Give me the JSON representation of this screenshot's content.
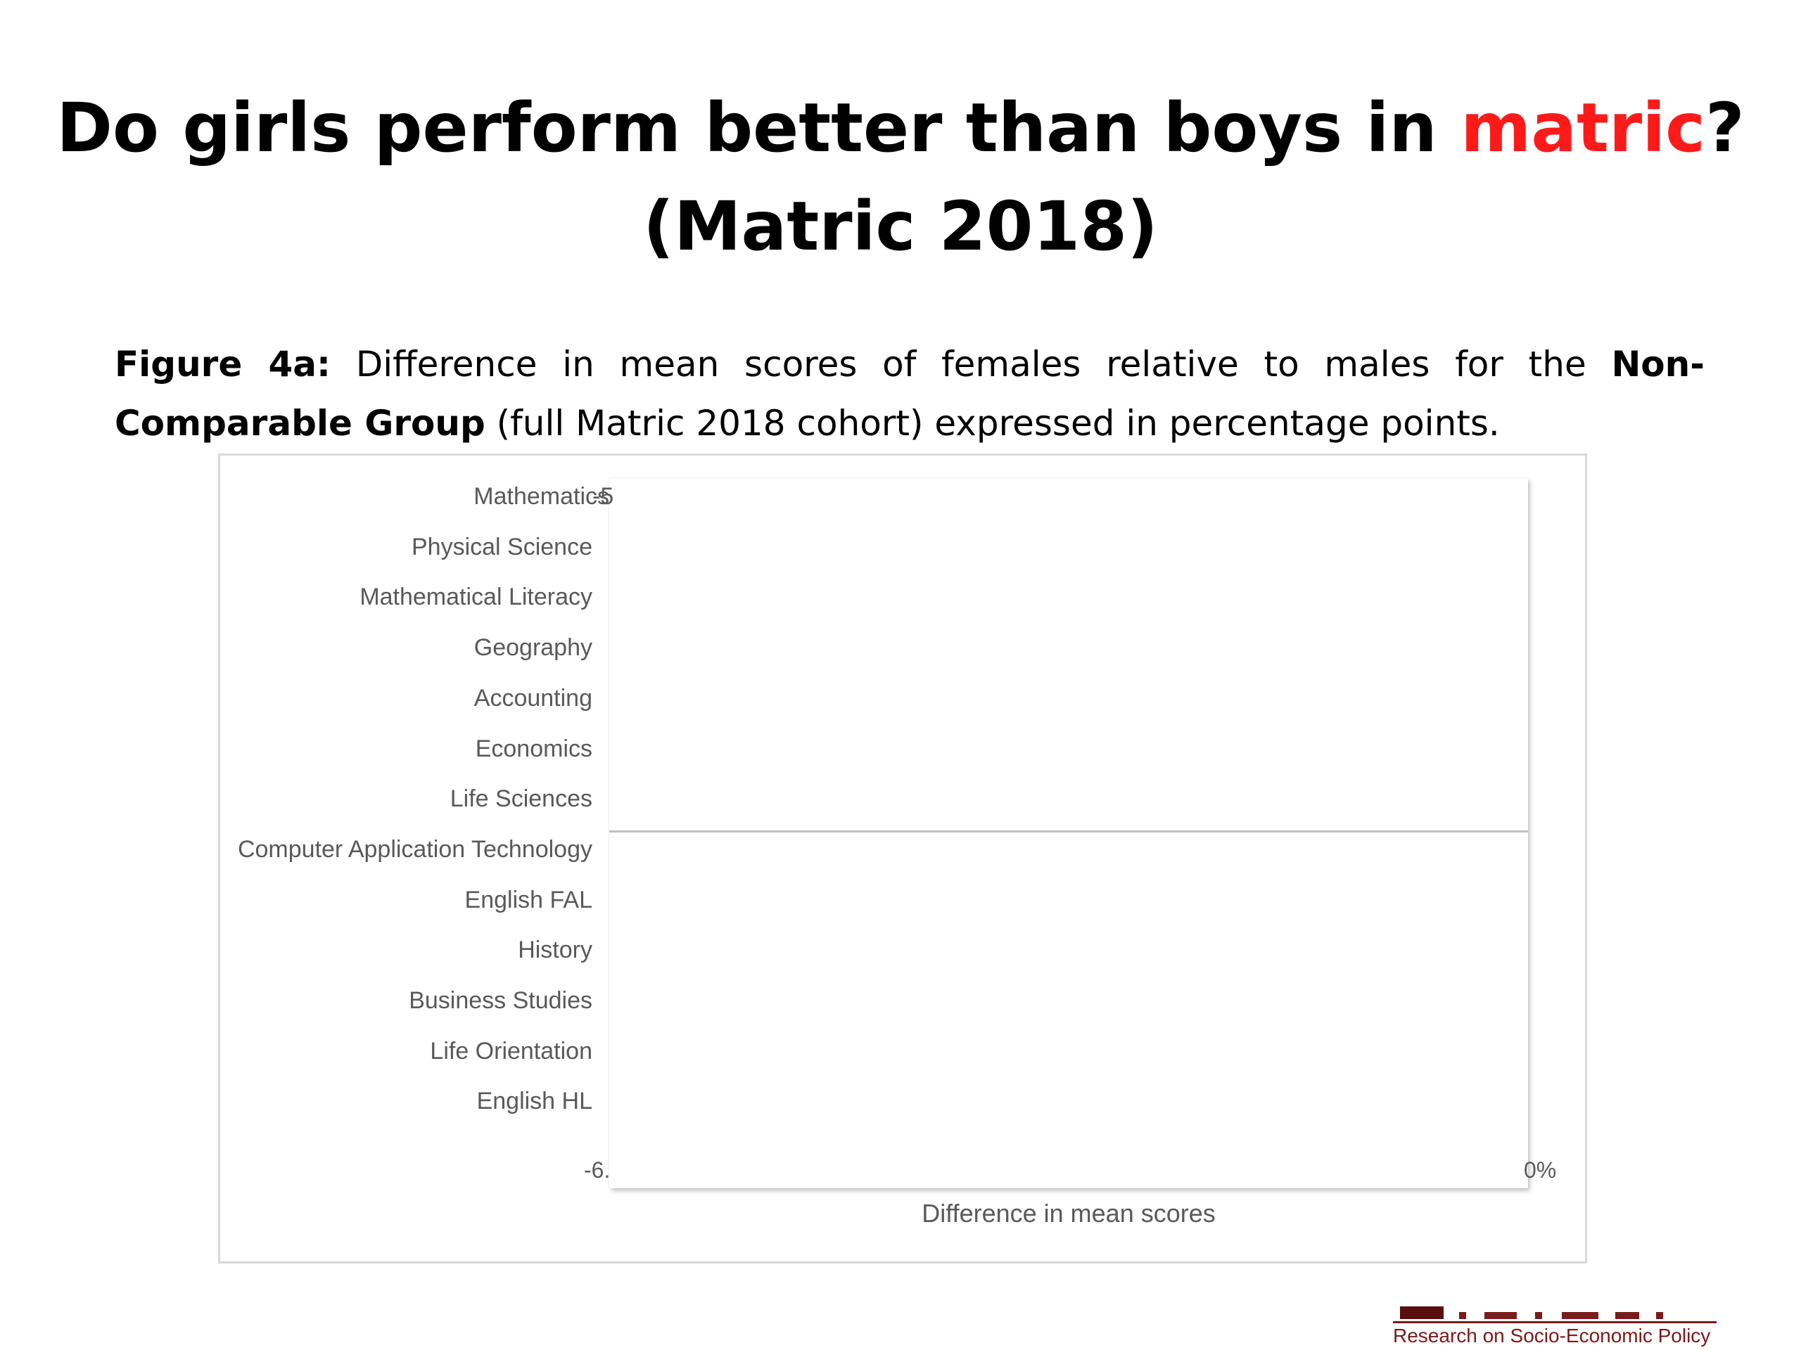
{
  "slide": {
    "title_part1": "Do girls perform better than boys in ",
    "title_accent": "matric",
    "title_part2": "?",
    "title_line2": "(Matric 2018)",
    "accent_color": "#ff1a1a"
  },
  "caption": {
    "figure_label": "Figure 4a:",
    "text1": " Difference in mean scores of females relative to males for the ",
    "group_bold": "Non-Comparable Group",
    "text2": " (full Matric 2018 cohort) expressed in percentage points."
  },
  "chart_data": {
    "type": "bar",
    "orientation": "horizontal",
    "categories": [
      "Mathematics",
      "Physical Science",
      "Mathematical Literacy",
      "Geography",
      "Accounting",
      "Economics",
      "Life Sciences",
      "Computer Application Technology",
      "English FAL",
      "History",
      "Business Studies",
      "Life Orientation",
      "English HL"
    ],
    "first_label_suffix": "-5",
    "x_tick_labels": [
      "-6.",
      "0%"
    ],
    "xlabel": "Difference in mean scores",
    "grid": false,
    "legend": "none"
  },
  "logo": {
    "tagline": "Research on Socio-Economic Policy",
    "color": "#7a1a1a"
  }
}
